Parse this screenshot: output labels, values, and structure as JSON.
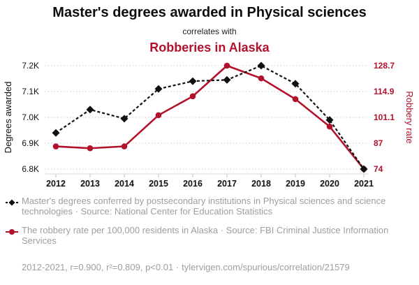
{
  "header": {
    "title": "Master's degrees awarded in Physical sciences",
    "connector": "correlates with",
    "focus": "Robberies in Alaska"
  },
  "colors": {
    "accent_red": "#b2122b",
    "series_black": "#111111",
    "grid": "#c9c9c9",
    "muted_gray": "#9e9e9e"
  },
  "chart_data": {
    "type": "line",
    "title": "Master's degrees awarded in Physical sciences correlates with Robberies in Alaska",
    "grid": "horizontal-dotted",
    "legend_position": "bottom",
    "x": [
      2012,
      2013,
      2014,
      2015,
      2016,
      2017,
      2018,
      2019,
      2020,
      2021
    ],
    "x_tick_labels": [
      "2012",
      "2013",
      "2014",
      "2015",
      "2016",
      "2017",
      "2018",
      "2019",
      "2020",
      "2021"
    ],
    "axes": {
      "left": {
        "label": "Degrees awarded",
        "min": 6800,
        "max": 7200,
        "ticks": [
          {
            "label": "6.8K",
            "value": 6800
          },
          {
            "label": "6.9K",
            "value": 6900
          },
          {
            "label": "7.0K",
            "value": 7000
          },
          {
            "label": "7.1K",
            "value": 7100
          },
          {
            "label": "7.2K",
            "value": 7200
          }
        ]
      },
      "right": {
        "label": "Robbery rate",
        "min": 74,
        "max": 128.7,
        "ticks": [
          {
            "label": "74",
            "value": 74
          },
          {
            "label": "87",
            "value": 87
          },
          {
            "label": "101.1",
            "value": 101.1
          },
          {
            "label": "114.9",
            "value": 114.9
          },
          {
            "label": "128.7",
            "value": 128.7
          }
        ]
      }
    },
    "series": [
      {
        "id": "degrees",
        "name": "Master's degrees conferred by postsecondary institutions in Physical sciences and science technologies",
        "axis": "left",
        "color": "#111111",
        "line_style": "dashed",
        "marker": "diamond",
        "values": [
          6940,
          7030,
          6995,
          7110,
          7140,
          7145,
          7200,
          7130,
          6990,
          6800
        ]
      },
      {
        "id": "robbery",
        "name": "The robbery rate per 100,000 residents in Alaska",
        "axis": "right",
        "color": "#b2122b",
        "line_style": "solid",
        "marker": "circle",
        "values": [
          86,
          85,
          86,
          102.5,
          112.5,
          128.7,
          122,
          111,
          96.5,
          74
        ]
      }
    ]
  },
  "legend": [
    {
      "text": "Master's degrees conferred by postsecondary institutions in Physical sciences and science technologies · Source: National Center for Education Statistics"
    },
    {
      "text": "The robbery rate per 100,000 residents in Alaska · Source: FBI Criminal Justice Information Services"
    }
  ],
  "footer": {
    "stats": "2012-2021, r=0.900, r²=0.809, p<0.01 ·",
    "link": "tylervigen.com/spurious/correlation/21579"
  }
}
